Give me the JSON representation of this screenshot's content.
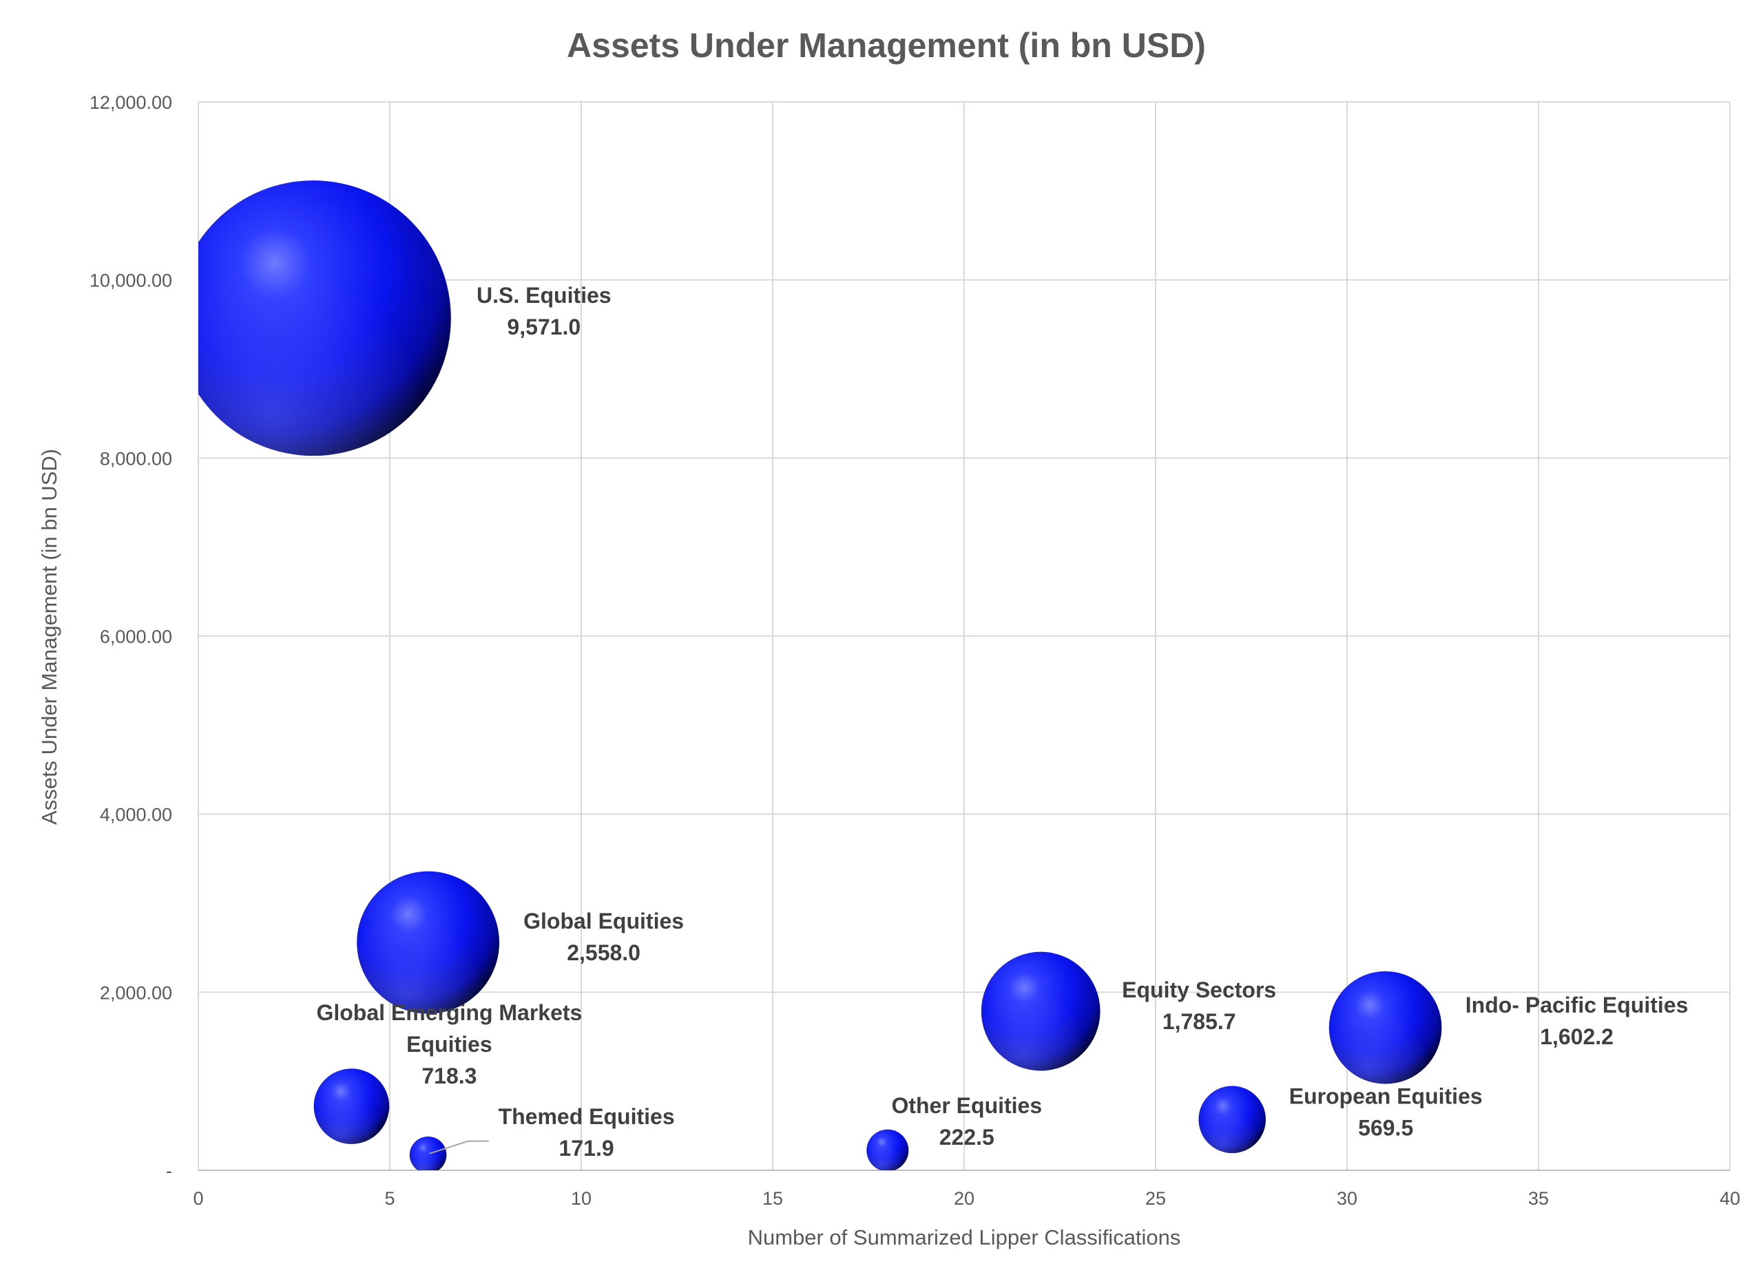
{
  "chart_data": {
    "type": "scatter",
    "subtype": "bubble",
    "title": "Assets Under Management (in bn USD)",
    "xlabel": "Number of Summarized Lipper Classifications",
    "ylabel": "Assets Under Management (in bn USD)",
    "xlim": [
      0,
      40
    ],
    "ylim": [
      0,
      12000
    ],
    "x_ticks": [
      "0",
      "5",
      "10",
      "15",
      "20",
      "25",
      "30",
      "35",
      "40"
    ],
    "y_ticks": [
      "-",
      "2,000.00",
      "4,000.00",
      "6,000.00",
      "8,000.00",
      "10,000.00",
      "12,000.00"
    ],
    "grid": true,
    "legend": "none",
    "bubble_color": "#1a1aff",
    "points": [
      {
        "name": "U.S. Equities",
        "x": 3,
        "y": 9571.0,
        "size": 9571.0,
        "label_lines": [
          "U.S. Equities",
          "9,571.0"
        ]
      },
      {
        "name": "Global Equities",
        "x": 6,
        "y": 2558.0,
        "size": 2558.0,
        "label_lines": [
          "Global Equities",
          "2,558.0"
        ]
      },
      {
        "name": "Global Emerging Markets Equities",
        "x": 4,
        "y": 718.3,
        "size": 718.3,
        "label_lines": [
          "Global Emerging Markets",
          "Equities",
          "718.3"
        ]
      },
      {
        "name": "Themed Equities",
        "x": 6,
        "y": 171.9,
        "size": 171.9,
        "label_lines": [
          "Themed Equities",
          "171.9"
        ]
      },
      {
        "name": "Other Equities",
        "x": 18,
        "y": 222.5,
        "size": 222.5,
        "label_lines": [
          "Other Equities",
          "222.5"
        ]
      },
      {
        "name": "Equity Sectors",
        "x": 22,
        "y": 1785.7,
        "size": 1785.7,
        "label_lines": [
          "Equity Sectors",
          "1,785.7"
        ]
      },
      {
        "name": "European Equities",
        "x": 27,
        "y": 569.5,
        "size": 569.5,
        "label_lines": [
          "European Equities",
          "569.5"
        ]
      },
      {
        "name": "Indo- Pacific Equities",
        "x": 31,
        "y": 1602.2,
        "size": 1602.2,
        "label_lines": [
          "Indo- Pacific Equities",
          "1,602.2"
        ]
      }
    ]
  }
}
